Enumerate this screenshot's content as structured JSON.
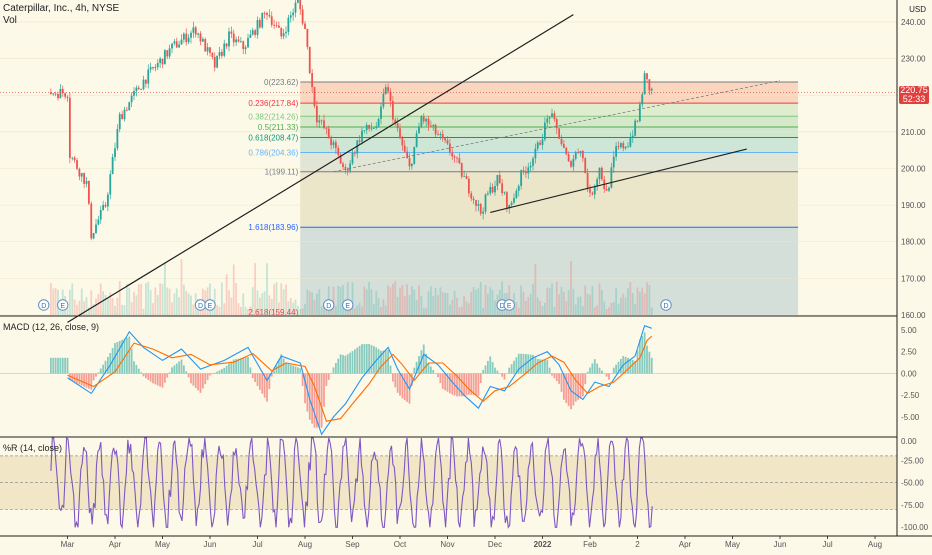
{
  "header": {
    "title": "Caterpillar, Inc., 4h, NYSE",
    "volume_label": "Vol",
    "currency": "USD"
  },
  "price_badge": {
    "price": "220.75",
    "countdown": "52:33",
    "color": "#e0413e"
  },
  "colors": {
    "up": "#26a69a",
    "down": "#ef5350",
    "macd": "#2196f3",
    "signal": "#ff6d00",
    "wr": "#7e57c2",
    "background": "#fcf9e8"
  },
  "chart_data": [
    {
      "type": "candlestick",
      "title": "Caterpillar, Inc., 4h, NYSE",
      "x_tick_labels": [
        "Mar",
        "Apr",
        "May",
        "Jun",
        "Jul",
        "Aug",
        "Sep",
        "Oct",
        "Nov",
        "Dec",
        "2022",
        "Feb",
        "2",
        "Apr",
        "May",
        "Jun",
        "Jul",
        "Aug"
      ],
      "y_tick_labels": [
        "160.00",
        "170.00",
        "180.00",
        "190.00",
        "200.00",
        "210.00",
        "220.00",
        "230.00",
        "240.00"
      ],
      "ylim": [
        160,
        246
      ],
      "last_price": 220.75,
      "price_path": [
        {
          "month": 0,
          "price": 205
        },
        {
          "month": 0.4,
          "price": 196
        },
        {
          "month": 0.5,
          "price": 182
        },
        {
          "month": 0.8,
          "price": 190
        },
        {
          "month": 1.1,
          "price": 214
        },
        {
          "month": 1.6,
          "price": 224
        },
        {
          "month": 2.2,
          "price": 233
        },
        {
          "month": 2.7,
          "price": 238
        },
        {
          "month": 3.1,
          "price": 228
        },
        {
          "month": 3.4,
          "price": 236
        },
        {
          "month": 3.7,
          "price": 233
        },
        {
          "month": 4.2,
          "price": 243
        },
        {
          "month": 4.5,
          "price": 236
        },
        {
          "month": 4.85,
          "price": 246
        },
        {
          "month": 5.0,
          "price": 238
        },
        {
          "month": 5.15,
          "price": 222
        },
        {
          "month": 5.25,
          "price": 214
        },
        {
          "month": 5.4,
          "price": 211
        },
        {
          "month": 5.6,
          "price": 206
        },
        {
          "month": 5.85,
          "price": 199
        },
        {
          "month": 6.2,
          "price": 210
        },
        {
          "month": 6.55,
          "price": 212
        },
        {
          "month": 6.7,
          "price": 223
        },
        {
          "month": 6.9,
          "price": 212
        },
        {
          "month": 7.2,
          "price": 200
        },
        {
          "month": 7.45,
          "price": 214
        },
        {
          "month": 7.8,
          "price": 209
        },
        {
          "month": 8.1,
          "price": 204
        },
        {
          "month": 8.4,
          "price": 196
        },
        {
          "month": 8.7,
          "price": 188
        },
        {
          "month": 8.85,
          "price": 193
        },
        {
          "month": 9.05,
          "price": 197
        },
        {
          "month": 9.3,
          "price": 189
        },
        {
          "month": 9.55,
          "price": 198
        },
        {
          "month": 9.85,
          "price": 204
        },
        {
          "month": 10.15,
          "price": 215
        },
        {
          "month": 10.35,
          "price": 209
        },
        {
          "month": 10.55,
          "price": 201
        },
        {
          "month": 10.8,
          "price": 206
        },
        {
          "month": 11.0,
          "price": 192
        },
        {
          "month": 11.2,
          "price": 200
        },
        {
          "month": 11.35,
          "price": 193
        },
        {
          "month": 11.55,
          "price": 205
        },
        {
          "month": 11.8,
          "price": 207
        },
        {
          "month": 12.0,
          "price": 213
        },
        {
          "month": 12.15,
          "price": 225
        },
        {
          "month": 12.25,
          "price": 222
        },
        {
          "month": 12.32,
          "price": 220.75
        }
      ],
      "fibonacci": [
        {
          "label": "0(223.62)",
          "level": 0,
          "price": 223.62,
          "color": "#787b86"
        },
        {
          "label": "0.236(217.84)",
          "level": 0.236,
          "price": 217.84,
          "color": "#f23645"
        },
        {
          "label": "0.382(214.26)",
          "level": 0.382,
          "price": 214.26,
          "color": "#81c784"
        },
        {
          "label": "0.5(211.33)",
          "level": 0.5,
          "price": 211.33,
          "color": "#4caf50"
        },
        {
          "label": "0.618(208.47)",
          "level": 0.618,
          "price": 208.47,
          "color": "#089981"
        },
        {
          "label": "0.786(204.36)",
          "level": 0.786,
          "price": 204.36,
          "color": "#64b5f6"
        },
        {
          "label": "1(199.11)",
          "level": 1,
          "price": 199.11,
          "color": "#787b86"
        },
        {
          "label": "1.618(183.96)",
          "level": 1.618,
          "price": 183.96,
          "color": "#2962ff"
        },
        {
          "label": "2.618(159.44)",
          "level": 2.618,
          "price": 159.44,
          "color": "#f23645"
        }
      ],
      "fib_zone_colors": [
        "#f9c9b0",
        "#d6e8c5",
        "#c8e3c0",
        "#bfe0c4",
        "#bddfd0",
        "#d7ddd0",
        "#e6dfc0",
        "#c8d6d6",
        "#fcc7a6"
      ],
      "trendlines": [
        {
          "name": "upper-trendline",
          "from": {
            "month": 0.0,
            "price": 158
          },
          "to": {
            "month": 10.65,
            "price": 242
          },
          "style": "solid"
        },
        {
          "name": "lower-support-trendline",
          "from": {
            "month": 8.9,
            "price": 188
          },
          "to": {
            "month": 14.3,
            "price": 205.3
          },
          "style": "solid"
        },
        {
          "name": "extension-dashed-line",
          "from": {
            "month": 5.6,
            "price": 199.11
          },
          "to": {
            "month": 15.0,
            "price": 224
          },
          "style": "dashed"
        }
      ],
      "event_markers": [
        {
          "label": "D",
          "month": -0.5
        },
        {
          "label": "E",
          "month": -0.1
        },
        {
          "label": "D",
          "month": 2.8
        },
        {
          "label": "E",
          "month": 3.0
        },
        {
          "label": "D",
          "month": 5.5
        },
        {
          "label": "E",
          "month": 5.9
        },
        {
          "label": "D",
          "month": 9.15
        },
        {
          "label": "E",
          "month": 9.3
        },
        {
          "label": "D",
          "month": 12.6
        }
      ]
    },
    {
      "type": "line",
      "title": "MACD (12, 26, close, 9)",
      "y_tick_labels": [
        "5.00",
        "2.50",
        "0.00",
        "-2.50",
        "-5.00"
      ],
      "ylim": [
        -7.2,
        6.5
      ],
      "series": [
        {
          "name": "MACD",
          "values": [
            {
              "month": 0,
              "value": -0.5
            },
            {
              "month": 0.5,
              "value": -2.3
            },
            {
              "month": 0.9,
              "value": 1
            },
            {
              "month": 1.3,
              "value": 4.8
            },
            {
              "month": 1.6,
              "value": 3
            },
            {
              "month": 2.0,
              "value": 1.5
            },
            {
              "month": 2.4,
              "value": 2.8
            },
            {
              "month": 2.8,
              "value": 0.5
            },
            {
              "month": 3.3,
              "value": 1.5
            },
            {
              "month": 3.8,
              "value": 3
            },
            {
              "month": 4.2,
              "value": -0.8
            },
            {
              "month": 4.5,
              "value": 2
            },
            {
              "month": 4.9,
              "value": 1.2
            },
            {
              "month": 5.1,
              "value": -3
            },
            {
              "month": 5.35,
              "value": -7
            },
            {
              "month": 5.6,
              "value": -5
            },
            {
              "month": 5.85,
              "value": -3.5
            },
            {
              "month": 6.2,
              "value": -0.5
            },
            {
              "month": 6.5,
              "value": 1.5
            },
            {
              "month": 6.75,
              "value": 3
            },
            {
              "month": 6.95,
              "value": 0.5
            },
            {
              "month": 7.2,
              "value": -1.8
            },
            {
              "month": 7.5,
              "value": 2.2
            },
            {
              "month": 7.8,
              "value": 1
            },
            {
              "month": 8.1,
              "value": -1
            },
            {
              "month": 8.35,
              "value": -2.5
            },
            {
              "month": 8.65,
              "value": -4
            },
            {
              "month": 8.9,
              "value": -1.5
            },
            {
              "month": 9.2,
              "value": -2
            },
            {
              "month": 9.5,
              "value": 0.5
            },
            {
              "month": 9.8,
              "value": 1.8
            },
            {
              "month": 10.1,
              "value": 2.5
            },
            {
              "month": 10.35,
              "value": 1
            },
            {
              "month": 10.6,
              "value": -2
            },
            {
              "month": 10.85,
              "value": -3
            },
            {
              "month": 11.1,
              "value": -1
            },
            {
              "month": 11.4,
              "value": -1.5
            },
            {
              "month": 11.7,
              "value": 1
            },
            {
              "month": 11.95,
              "value": 2
            },
            {
              "month": 12.15,
              "value": 5.5
            },
            {
              "month": 12.3,
              "value": 5.2
            }
          ]
        },
        {
          "name": "Signal",
          "values": [
            {
              "month": 0,
              "value": -0.2
            },
            {
              "month": 0.55,
              "value": -1.5
            },
            {
              "month": 1.0,
              "value": 0.2
            },
            {
              "month": 1.4,
              "value": 3.5
            },
            {
              "month": 1.8,
              "value": 2.8
            },
            {
              "month": 2.2,
              "value": 1.8
            },
            {
              "month": 2.6,
              "value": 2.2
            },
            {
              "month": 3.0,
              "value": 1
            },
            {
              "month": 3.5,
              "value": 1.3
            },
            {
              "month": 3.9,
              "value": 2.3
            },
            {
              "month": 4.3,
              "value": 0.3
            },
            {
              "month": 4.6,
              "value": 1.2
            },
            {
              "month": 5.0,
              "value": 0.8
            },
            {
              "month": 5.2,
              "value": -1.5
            },
            {
              "month": 5.45,
              "value": -5.5
            },
            {
              "month": 5.75,
              "value": -5.2
            },
            {
              "month": 6.0,
              "value": -3.5
            },
            {
              "month": 6.35,
              "value": -1.2
            },
            {
              "month": 6.6,
              "value": 0.8
            },
            {
              "month": 6.85,
              "value": 2.2
            },
            {
              "month": 7.05,
              "value": 1
            },
            {
              "month": 7.3,
              "value": -0.8
            },
            {
              "month": 7.6,
              "value": 1.2
            },
            {
              "month": 7.9,
              "value": 1.2
            },
            {
              "month": 8.2,
              "value": -0.3
            },
            {
              "month": 8.45,
              "value": -1.8
            },
            {
              "month": 8.75,
              "value": -3.2
            },
            {
              "month": 9.0,
              "value": -2
            },
            {
              "month": 9.3,
              "value": -1.5
            },
            {
              "month": 9.6,
              "value": -0.2
            },
            {
              "month": 9.9,
              "value": 1.2
            },
            {
              "month": 10.2,
              "value": 2
            },
            {
              "month": 10.45,
              "value": 1.3
            },
            {
              "month": 10.7,
              "value": -0.8
            },
            {
              "month": 10.95,
              "value": -2.3
            },
            {
              "month": 11.2,
              "value": -1.5
            },
            {
              "month": 11.5,
              "value": -1
            },
            {
              "month": 11.8,
              "value": 0.5
            },
            {
              "month": 12.05,
              "value": 1.8
            },
            {
              "month": 12.2,
              "value": 3.8
            },
            {
              "month": 12.3,
              "value": 4.3
            }
          ]
        }
      ]
    },
    {
      "type": "line",
      "title": "%R (14, close)",
      "y_tick_labels": [
        "0.00",
        "-25.00",
        "-50.00",
        "-75.00",
        "-100.00"
      ],
      "ylim": [
        -103,
        0
      ],
      "reference_levels": [
        -20,
        -80
      ],
      "series": [
        {
          "name": "%R",
          "oscillating": true,
          "range": [
            -100,
            0
          ]
        }
      ]
    }
  ]
}
